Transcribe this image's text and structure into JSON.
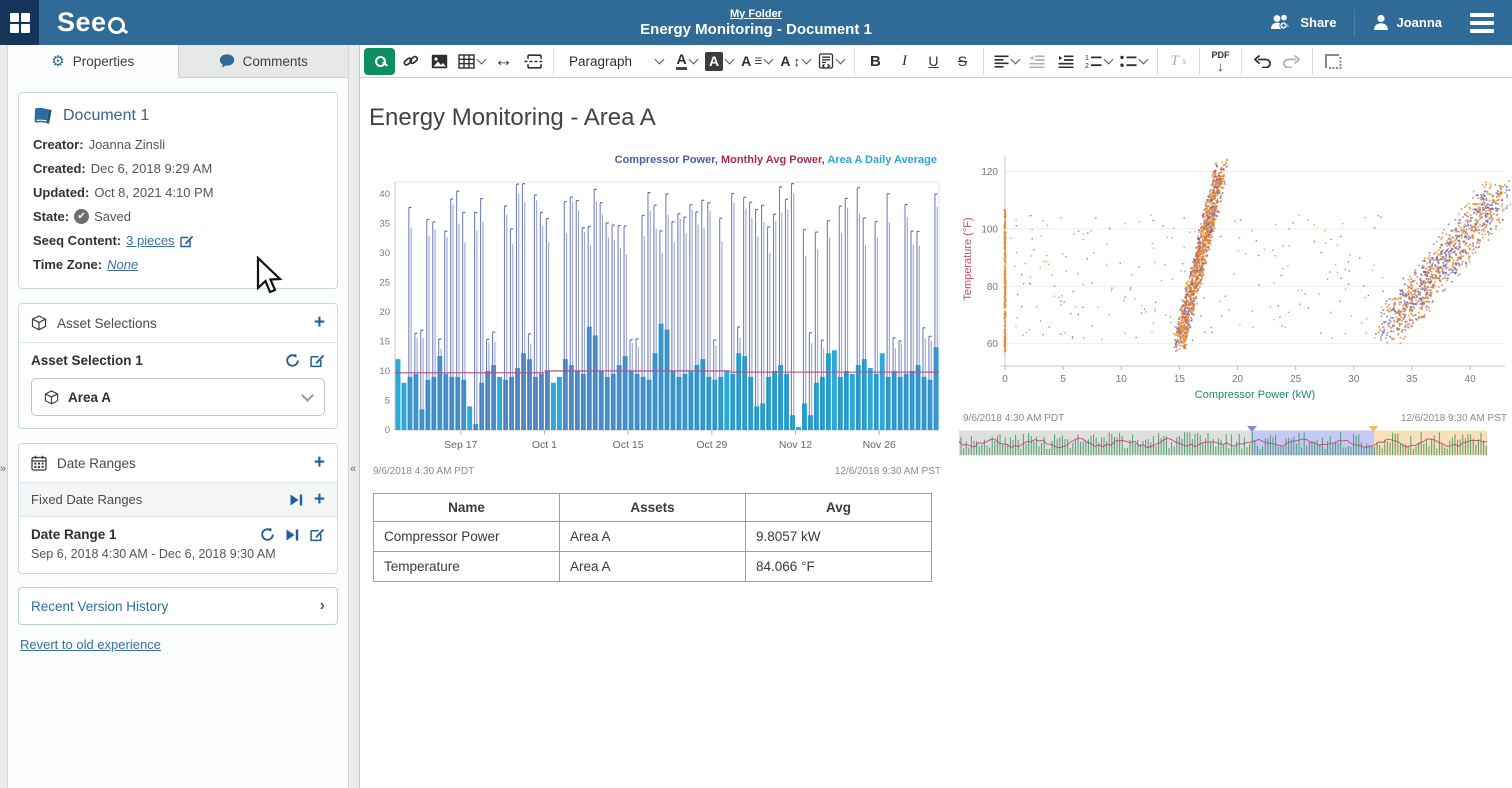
{
  "header": {
    "logo": "Seeq",
    "breadcrumb": "My Folder",
    "title": "Energy Monitoring - Document 1",
    "share_label": "Share",
    "user_label": "Joanna"
  },
  "sidebar": {
    "tabs": [
      {
        "label": "Properties"
      },
      {
        "label": "Comments"
      }
    ],
    "document": {
      "title": "Document 1",
      "creator_label": "Creator:",
      "creator": "Joanna Zinsli",
      "created_label": "Created:",
      "created": "Dec 6, 2018 9:29 AM",
      "updated_label": "Updated:",
      "updated": "Oct 8, 2021 4:10 PM",
      "state_label": "State:",
      "state": "Saved",
      "content_label": "Seeq Content:",
      "content_link": "3 pieces",
      "timezone_label": "Time Zone:",
      "timezone": "None"
    },
    "asset_selections": {
      "header": "Asset Selections",
      "item_title": "Asset Selection 1",
      "dropdown_value": "Area A"
    },
    "date_ranges": {
      "header": "Date Ranges",
      "group": "Fixed Date Ranges",
      "item_title": "Date Range 1",
      "item_range": "Sep 6, 2018 4:30 AM - Dec 6, 2018 9:30 AM"
    },
    "version_history": "Recent Version History",
    "revert_link": "Revert to old experience"
  },
  "toolbar": {
    "paragraph": "Paragraph",
    "bold": "B",
    "italic": "I",
    "underline": "U",
    "strike": "S",
    "pdf": "PDF",
    "clear_format": "Tx"
  },
  "main": {
    "heading": "Energy Monitoring - Area A",
    "table": {
      "headers": [
        "Name",
        "Assets",
        "Avg"
      ],
      "rows": [
        [
          "Compressor Power",
          "Area A",
          "9.8057 kW"
        ],
        [
          "Temperature",
          "Area A",
          "84.066 °F"
        ]
      ]
    }
  },
  "chart_data": [
    {
      "type": "bar",
      "title": "",
      "legend": [
        {
          "name": "Compressor Power",
          "color": "#4a5fa5"
        },
        {
          "name": "Monthly Avg Power",
          "color": "#a82c55"
        },
        {
          "name": "Area A Daily Average",
          "color": "#29a8d8"
        }
      ],
      "ylim": [
        0,
        42
      ],
      "yticks": [
        0,
        5,
        10,
        15,
        20,
        25,
        30,
        35,
        40
      ],
      "x_tick_labels": [
        "Sep 17",
        "Oct 1",
        "Oct 15",
        "Oct 29",
        "Nov 12",
        "Nov 26"
      ],
      "x_tick_day": [
        11,
        25,
        39,
        53,
        67,
        81
      ],
      "n_days": 91,
      "start_label": "9/6/2018 4:30 AM PDT",
      "end_label": "12/6/2018 9:30 AM PST",
      "daily_avg_bars": [
        12,
        8,
        9,
        9.5,
        3.5,
        8.5,
        9,
        12.5,
        9.5,
        9,
        9,
        8.5,
        4,
        1,
        8,
        10,
        11,
        9,
        8.5,
        9,
        10.5,
        13,
        12,
        9,
        9.5,
        10,
        8,
        9,
        12,
        11,
        10,
        9.5,
        17.5,
        16,
        10,
        9,
        9.5,
        11,
        12.5,
        10,
        9.5,
        9,
        8.5,
        13,
        18,
        17,
        10,
        9,
        9.5,
        10,
        11,
        12,
        9,
        8.5,
        9,
        10,
        9.5,
        13,
        12.5,
        9,
        4,
        4.5,
        9,
        10,
        11,
        9.5,
        2.5,
        0.5,
        4.5,
        2.5,
        8,
        9,
        13,
        13.5,
        9,
        10,
        9.5,
        11,
        12,
        10.5,
        9.5,
        13,
        9,
        10,
        9,
        9.5,
        10,
        11,
        9,
        8.5,
        14
      ],
      "monthly_avg_segments": [
        {
          "from": 0,
          "to": 25,
          "value": 9.7
        },
        {
          "from": 25,
          "to": 56,
          "value": 10.0
        },
        {
          "from": 56,
          "to": 91,
          "value": 9.8
        }
      ],
      "spike_range": [
        33,
        42
      ],
      "spike_low_range": [
        15,
        17.5
      ],
      "gap_fraction": 0.12
    },
    {
      "type": "scatter",
      "xlabel": "Compressor Power (kW)",
      "ylabel": "Temperature (°F)",
      "xlabel_color": "#1b8a6b",
      "ylabel_color": "#c0506f",
      "xlim": [
        0,
        43
      ],
      "ylim": [
        55,
        124
      ],
      "xticks": [
        0,
        5,
        10,
        15,
        20,
        25,
        30,
        35,
        40
      ],
      "yticks": [
        60,
        80,
        100,
        120
      ],
      "point_colors": {
        "orange": "#e8862a",
        "blue": "#5a5fd8",
        "grey": "#8a8a8a"
      },
      "clusters": [
        {
          "name": "zero-power-column",
          "x": 0,
          "y_range": [
            57,
            107
          ],
          "n": 260,
          "color": "orange"
        },
        {
          "name": "mid-diagonal",
          "x_range": [
            15,
            18.6
          ],
          "y_range": [
            60,
            121
          ],
          "n": 1300,
          "color": "orange-blue"
        },
        {
          "name": "high-diagonal",
          "x_range": [
            33,
            42.5
          ],
          "y_range": [
            65,
            112
          ],
          "n": 1100,
          "color": "mixed"
        },
        {
          "name": "sparse-background",
          "x_range": [
            0.4,
            33
          ],
          "y_range": [
            61,
            105
          ],
          "n": 230,
          "color": "mixed"
        }
      ],
      "start_label": "9/6/2018 4:30 AM PDT",
      "end_label": "12/6/2018 9:30 AM PST",
      "timebar_regions": [
        {
          "color": "#b9b9b9",
          "to": 0.555
        },
        {
          "color": "#8289e8",
          "to": 0.785
        },
        {
          "color": "#f2b968",
          "to": 1.0
        }
      ]
    }
  ],
  "colors": {
    "header_bg": "#2f6b96",
    "logo_square_bg": "#16355a",
    "accent_blue": "#1f5f9e",
    "link_blue": "#3a70a5",
    "seeq_green": "#0e8f62",
    "bar_cyan": "#2ba9d8",
    "spike_blue": "#5b6cb5",
    "avg_magenta": "#b84f8a",
    "timebar_green": "#2e8f55",
    "timebar_magenta": "#c04070"
  },
  "icons": {
    "app-grid-icon": "four-squares",
    "seeq-logo-q": "magnifier-q",
    "share-icon": "people-plus",
    "user-icon": "person",
    "menu-icon": "hamburger",
    "gear-icon": "⚙",
    "comment-icon": "speech-bubble",
    "book-icon": "book",
    "saved-check-icon": "✔",
    "edit-icon": "pencil-square",
    "cube-icon": "cube",
    "calendar-icon": "calendar",
    "refresh-icon": "circular-arrow",
    "step-forward-icon": "play-to-bar",
    "plus-icon": "+",
    "chevron-down-icon": "v",
    "chevron-right-icon": "›",
    "collapse-left-icon": "«",
    "expand-right-icon": "»"
  }
}
